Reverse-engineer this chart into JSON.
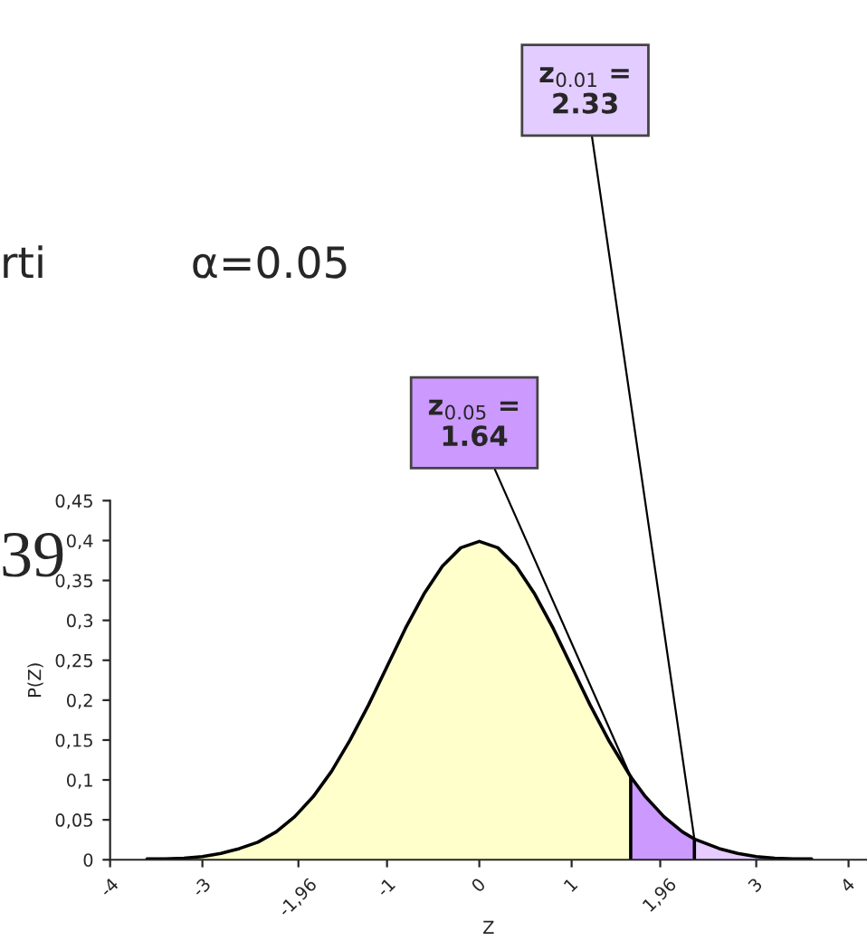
{
  "chart_data": {
    "type": "area",
    "xlabel": "Z",
    "ylabel": "P(Z)",
    "series": [
      {
        "color": "#ffffcc",
        "x": [
          -3.6,
          -3.4,
          -3.2,
          -3.0,
          -2.8,
          -2.6,
          -2.4,
          -2.2,
          -2.0,
          -1.8,
          -1.6,
          -1.4,
          -1.2,
          -1.0,
          -0.8,
          -0.6,
          -0.4,
          -0.2,
          0,
          0.2,
          0.4,
          0.6,
          0.8,
          1.0,
          1.2,
          1.4,
          1.64
        ],
        "values": [
          0.001,
          0.001,
          0.002,
          0.004,
          0.008,
          0.014,
          0.022,
          0.035,
          0.054,
          0.079,
          0.111,
          0.15,
          0.194,
          0.242,
          0.29,
          0.333,
          0.368,
          0.391,
          0.399,
          0.391,
          0.368,
          0.333,
          0.29,
          0.242,
          0.194,
          0.15,
          0.104
        ]
      },
      {
        "color": "#cc99ff",
        "x": [
          1.64,
          1.8,
          2.0,
          2.2,
          2.33
        ],
        "values": [
          0.104,
          0.079,
          0.054,
          0.035,
          0.026
        ]
      },
      {
        "color": "#e6ccff",
        "x": [
          2.33,
          2.6,
          2.8,
          3.0,
          3.2,
          3.4,
          3.6
        ],
        "values": [
          0.026,
          0.014,
          0.008,
          0.004,
          0.002,
          0.001,
          0.001
        ]
      }
    ],
    "xlim": [
      -4,
      4.2
    ],
    "ylim": [
      0,
      0.45
    ],
    "xticks": [
      -4,
      -3,
      {
        "value": -1.96,
        "label": "-1,96"
      },
      -1,
      0,
      1,
      {
        "value": 1.96,
        "label": "1,96"
      },
      3,
      4
    ],
    "yticks": [
      0,
      {
        "value": 0.05,
        "label": "0,05"
      },
      {
        "value": 0.1,
        "label": "0,1"
      },
      {
        "value": 0.15,
        "label": "0,15"
      },
      {
        "value": 0.2,
        "label": "0,2"
      },
      {
        "value": 0.25,
        "label": "0,25"
      },
      {
        "value": 0.3,
        "label": "0,3"
      },
      {
        "value": 0.35,
        "label": "0,35"
      },
      {
        "value": 0.4,
        "label": "0,4"
      },
      {
        "value": 0.45,
        "label": "0,45"
      }
    ],
    "grid": false,
    "legend": false,
    "annotations": [
      "rti",
      "α=0.05",
      "39",
      {
        "text": "z$_{0.01}$ =\n2.33",
        "x": 2.33,
        "y": 0.026
      },
      {
        "text": "z$_{0.05}$ =\n1.64",
        "x": 1.64,
        "y": 0.104
      }
    ]
  }
}
